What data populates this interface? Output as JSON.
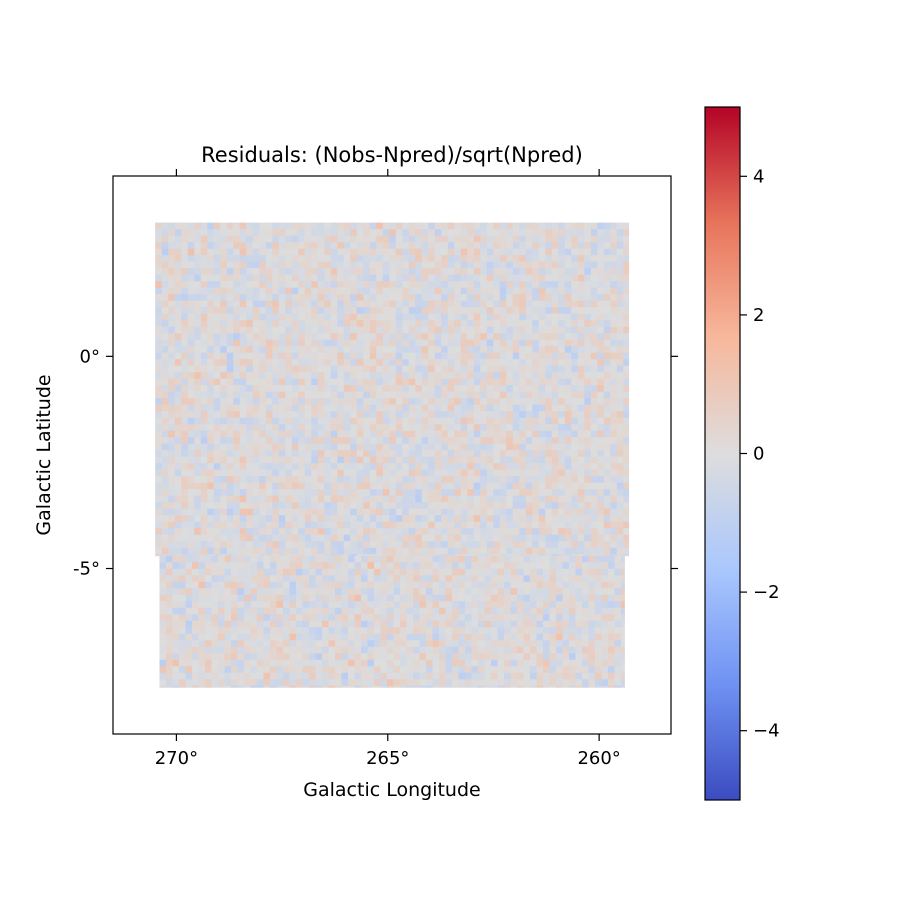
{
  "chart_data": {
    "type": "heatmap",
    "title": "Residuals: (Nobs-Npred)/sqrt(Npred)",
    "xlabel": "Galactic Longitude",
    "ylabel": "Galactic Latitude",
    "x_ticks": [
      {
        "value": 270,
        "label": "270°"
      },
      {
        "value": 265,
        "label": "265°"
      },
      {
        "value": 260,
        "label": "260°"
      }
    ],
    "y_ticks": [
      {
        "value": 0,
        "label": "0°"
      },
      {
        "value": -5,
        "label": "-5°"
      }
    ],
    "xlim": [
      271.5,
      258.3
    ],
    "ylim": [
      -8.9,
      4.25
    ],
    "x_direction": "decreasing",
    "colormap": "coolwarm",
    "colormap_stops": [
      "#3b4cc0",
      "#6f92f3",
      "#aac7fd",
      "#dddddd",
      "#f7b89c",
      "#e7745b",
      "#b40426"
    ],
    "colorbar": {
      "vmin": -5,
      "vmax": 5,
      "ticks": [
        {
          "value": 4,
          "label": "4"
        },
        {
          "value": 2,
          "label": "2"
        },
        {
          "value": 0,
          "label": "0"
        },
        {
          "value": -2,
          "label": "−2"
        },
        {
          "value": -4,
          "label": "−4"
        }
      ]
    },
    "map_footprint": {
      "upper_block": {
        "lon": [
          270.5,
          259.3
        ],
        "lat": [
          -4.7,
          3.15
        ]
      },
      "lower_block": {
        "lon": [
          270.4,
          259.4
        ],
        "lat": [
          -7.8,
          -4.7
        ]
      }
    },
    "residual_distribution": {
      "mean": 0.0,
      "std": 0.45,
      "range": [
        -1.1,
        1.9
      ]
    },
    "grid": false,
    "legend": "colorbar-right"
  }
}
